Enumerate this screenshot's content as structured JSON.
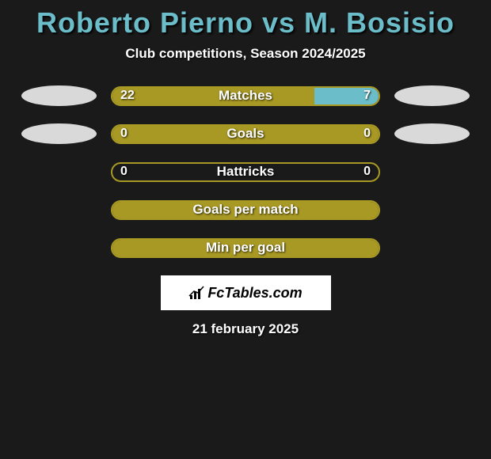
{
  "title": "Roberto Pierno vs M. Bosisio",
  "subtitle": "Club competitions, Season 2024/2025",
  "date": "21 february 2025",
  "logo": "FcTables.com",
  "colors": {
    "primary": "#a89824",
    "secondary": "#6bbec9",
    "flag_light": "#d9d9d9",
    "border": "#a89824",
    "background": "#1a1a1a"
  },
  "rows": [
    {
      "label": "Matches",
      "left_value": "22",
      "right_value": "7",
      "left_pct": 75.9,
      "right_pct": 24.1,
      "left_color": "#a89824",
      "right_color": "#6bbec9",
      "show_values": true,
      "flag_left": true,
      "flag_right": true,
      "flag_left_color": "#d9d9d9",
      "flag_right_color": "#d9d9d9"
    },
    {
      "label": "Goals",
      "left_value": "0",
      "right_value": "0",
      "left_pct": 100,
      "right_pct": 0,
      "left_color": "#a89824",
      "right_color": "#6bbec9",
      "show_values": true,
      "flag_left": true,
      "flag_right": true,
      "flag_left_color": "#d9d9d9",
      "flag_right_color": "#d9d9d9"
    },
    {
      "label": "Hattricks",
      "left_value": "0",
      "right_value": "0",
      "left_pct": 0,
      "right_pct": 0,
      "left_color": "#a89824",
      "right_color": "#6bbec9",
      "show_values": true,
      "flag_left": false,
      "flag_right": false
    },
    {
      "label": "Goals per match",
      "left_value": "",
      "right_value": "",
      "left_pct": 100,
      "right_pct": 0,
      "left_color": "#a89824",
      "right_color": "#6bbec9",
      "show_values": false,
      "flag_left": false,
      "flag_right": false
    },
    {
      "label": "Min per goal",
      "left_value": "",
      "right_value": "",
      "left_pct": 100,
      "right_pct": 0,
      "left_color": "#a89824",
      "right_color": "#6bbec9",
      "show_values": false,
      "flag_left": false,
      "flag_right": false
    }
  ]
}
